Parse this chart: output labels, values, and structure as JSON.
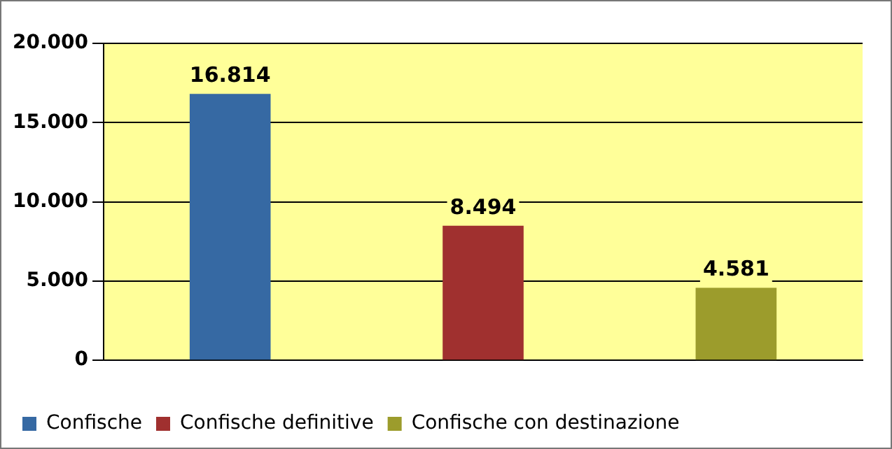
{
  "chart_data": {
    "type": "bar",
    "categories": [
      null
    ],
    "series": [
      {
        "name": "Confische",
        "color": "#3669a3",
        "values": [
          16814
        ],
        "value_labels": [
          "16.814"
        ]
      },
      {
        "name": "Confische definitive",
        "color": "#a0302f",
        "values": [
          8494
        ],
        "value_labels": [
          "8.494"
        ]
      },
      {
        "name": "Confische con destinazione",
        "color": "#9c9c2c",
        "values": [
          4581
        ],
        "value_labels": [
          "4.581"
        ]
      }
    ],
    "ylim": [
      0,
      20000
    ],
    "yticks": [
      {
        "value": 0,
        "label": "0"
      },
      {
        "value": 5000,
        "label": "5.000"
      },
      {
        "value": 10000,
        "label": "10.000"
      },
      {
        "value": 15000,
        "label": "15.000"
      },
      {
        "value": 20000,
        "label": "20.000"
      }
    ],
    "grid": "y",
    "legend": "bottom"
  }
}
